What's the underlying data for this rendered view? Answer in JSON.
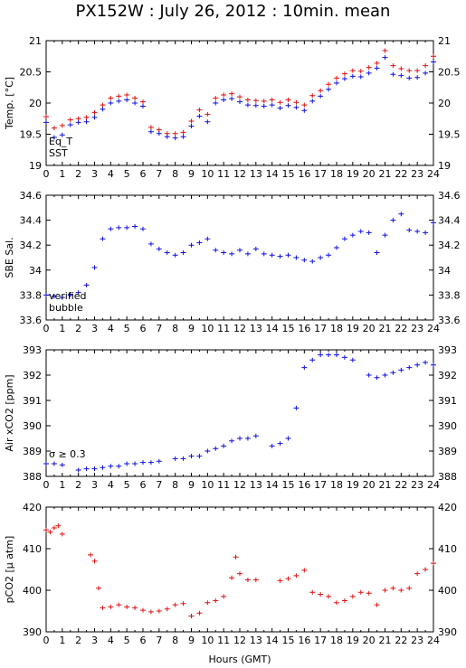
{
  "title": "PX152W : July 26, 2012 : 10min. mean",
  "xlabel": "Hours (GMT)",
  "colors": {
    "red": "#e01010",
    "blue": "#1010e0",
    "magenta": "#d010d0"
  },
  "chart_data": [
    {
      "type": "scatter",
      "ylabel": "Temp. [°C]",
      "xlim": [
        0,
        24
      ],
      "ylim": [
        19,
        21
      ],
      "yticks": [
        "19",
        "19.5",
        "20",
        "20.5",
        "21"
      ],
      "legend": [
        "Eq_T",
        "SST"
      ],
      "series": [
        {
          "name": "Eq_T",
          "color": "red",
          "x": [
            0,
            0.5,
            1,
            1.5,
            2,
            2.5,
            3,
            3.5,
            4,
            4.5,
            5,
            5.5,
            6,
            6.5,
            7,
            7.5,
            8,
            8.5,
            9,
            9.5,
            10,
            10.5,
            11,
            11.5,
            12,
            12.5,
            13,
            13.5,
            14,
            14.5,
            15,
            15.5,
            16,
            16.5,
            17,
            17.5,
            18,
            18.5,
            19,
            19.5,
            20,
            20.5,
            21,
            21.5,
            22,
            22.5,
            23,
            23.5,
            24
          ],
          "y": [
            19.78,
            19.6,
            19.64,
            19.73,
            19.75,
            19.77,
            19.85,
            19.97,
            20.08,
            20.11,
            20.13,
            20.08,
            20.02,
            19.61,
            19.57,
            19.51,
            19.51,
            19.53,
            19.71,
            19.89,
            19.82,
            20.08,
            20.13,
            20.15,
            20.1,
            20.05,
            20.04,
            20.03,
            20.05,
            20.01,
            20.05,
            20.01,
            19.97,
            20.12,
            20.2,
            20.3,
            20.4,
            20.47,
            20.52,
            20.51,
            20.57,
            20.64,
            20.84,
            20.6,
            20.55,
            20.52,
            20.52,
            20.6,
            20.75
          ]
        },
        {
          "name": "SST",
          "color": "blue",
          "x": [
            0,
            0.5,
            1,
            1.5,
            2,
            2.5,
            3,
            3.5,
            4,
            4.5,
            5,
            5.5,
            6,
            6.5,
            7,
            7.5,
            8,
            8.5,
            9,
            9.5,
            10,
            10.5,
            11,
            11.5,
            12,
            12.5,
            13,
            13.5,
            14,
            14.5,
            15,
            15.5,
            16,
            16.5,
            17,
            17.5,
            18,
            18.5,
            19,
            19.5,
            20,
            20.5,
            21,
            21.5,
            22,
            22.5,
            23,
            23.5,
            24
          ],
          "y": [
            19.69,
            19.45,
            19.49,
            19.65,
            19.69,
            19.7,
            19.77,
            19.9,
            20.0,
            20.03,
            20.05,
            20.0,
            19.95,
            19.54,
            19.51,
            19.46,
            19.44,
            19.46,
            19.63,
            19.79,
            19.7,
            20.0,
            20.05,
            20.07,
            20.02,
            19.97,
            19.96,
            19.95,
            19.97,
            19.92,
            19.96,
            19.93,
            19.88,
            20.03,
            20.11,
            20.22,
            20.32,
            20.39,
            20.43,
            20.42,
            20.48,
            20.56,
            20.73,
            20.46,
            20.44,
            20.4,
            20.41,
            20.48,
            20.66
          ]
        }
      ]
    },
    {
      "type": "scatter",
      "ylabel": "SBE Sal.",
      "xlim": [
        0,
        24
      ],
      "ylim": [
        33.6,
        34.6
      ],
      "yticks": [
        "33.6",
        "33.8",
        "34",
        "34.2",
        "34.4",
        "34.6"
      ],
      "legend": [
        "verified",
        "bubble"
      ],
      "series": [
        {
          "name": "verified",
          "color": "blue",
          "x": [
            0,
            0.5,
            1,
            1.5,
            2,
            2.5,
            3,
            3.5,
            4,
            4.5,
            5,
            5.5,
            6,
            6.5,
            7,
            7.5,
            8,
            8.5,
            9,
            9.5,
            10,
            10.5,
            11,
            11.5,
            12,
            12.5,
            13,
            13.5,
            14,
            14.5,
            15,
            15.5,
            16,
            16.5,
            17,
            17.5,
            18,
            18.5,
            19,
            19.5,
            20,
            20.5,
            21,
            21.5,
            22,
            22.5,
            23,
            23.5,
            24
          ],
          "y": [
            33.8,
            33.79,
            33.78,
            33.8,
            33.82,
            33.88,
            34.02,
            34.25,
            34.33,
            34.34,
            34.34,
            34.35,
            34.33,
            34.21,
            34.17,
            34.14,
            34.12,
            34.14,
            34.2,
            34.22,
            34.25,
            34.16,
            34.14,
            34.13,
            34.16,
            34.13,
            34.17,
            34.13,
            34.12,
            34.11,
            34.12,
            34.1,
            34.08,
            34.07,
            34.1,
            34.12,
            34.18,
            34.25,
            34.28,
            34.31,
            34.3,
            34.14,
            34.28,
            34.4,
            34.45,
            34.32,
            34.31,
            34.3,
            34.38
          ]
        }
      ]
    },
    {
      "type": "scatter",
      "ylabel": "Air xCO2 [ppm]",
      "xlim": [
        0,
        24
      ],
      "ylim": [
        388,
        393
      ],
      "yticks": [
        "388",
        "389",
        "390",
        "391",
        "392",
        "393"
      ],
      "annotation": "σ ≥ 0.3",
      "series": [
        {
          "name": "Air xCO2",
          "color": "blue",
          "x": [
            0,
            0.5,
            1,
            2,
            2.5,
            3,
            3.5,
            4,
            4.5,
            5,
            5.5,
            6,
            6.5,
            7,
            8,
            8.5,
            9,
            9.5,
            10,
            10.5,
            11,
            11.5,
            12,
            12.5,
            13,
            14,
            14.5,
            15,
            15.5,
            16,
            16.5,
            17,
            17.5,
            18,
            18.5,
            19,
            20,
            20.5,
            21,
            21.5,
            22,
            22.5,
            23,
            23.5,
            24
          ],
          "y": [
            388.5,
            388.5,
            388.45,
            388.25,
            388.3,
            388.3,
            388.35,
            388.4,
            388.4,
            388.5,
            388.5,
            388.55,
            388.55,
            388.6,
            388.7,
            388.7,
            388.8,
            388.8,
            389.0,
            389.1,
            389.2,
            389.4,
            389.5,
            389.5,
            389.6,
            389.2,
            389.3,
            389.5,
            390.7,
            392.3,
            392.6,
            392.8,
            392.8,
            392.8,
            392.7,
            392.6,
            392.0,
            391.9,
            392.0,
            392.1,
            392.2,
            392.3,
            392.4,
            392.5,
            392.4
          ]
        }
      ]
    },
    {
      "type": "scatter",
      "ylabel": "pCO2 [µ atm]",
      "xlim": [
        0,
        24
      ],
      "ylim": [
        390,
        420
      ],
      "yticks": [
        "390",
        "400",
        "410",
        "420"
      ],
      "series": [
        {
          "name": "pCO2",
          "color": "red",
          "x": [
            0,
            0.25,
            0.5,
            0.75,
            1,
            2.75,
            3,
            3.25,
            3.5,
            4,
            4.5,
            5,
            5.5,
            6,
            6.5,
            7,
            7.5,
            8,
            8.5,
            9,
            9.5,
            10,
            10.5,
            11,
            11.5,
            11.75,
            12,
            12.5,
            13,
            14.5,
            15,
            15.5,
            16,
            16.5,
            17,
            17.5,
            18,
            18.5,
            19,
            19.5,
            20,
            20.5,
            21,
            21.5,
            22,
            22.5,
            23,
            23.5,
            24
          ],
          "y": [
            414.5,
            414.0,
            415.0,
            415.5,
            413.5,
            408.5,
            407.0,
            400.5,
            395.8,
            396.0,
            396.5,
            396.0,
            395.8,
            395.2,
            394.8,
            395.0,
            395.5,
            396.5,
            396.8,
            393.8,
            394.5,
            397.0,
            397.5,
            398.5,
            403.0,
            408.0,
            404.0,
            402.5,
            402.5,
            402.3,
            402.8,
            403.5,
            404.8,
            399.5,
            399.0,
            398.5,
            397.0,
            397.5,
            398.5,
            399.5,
            399.3,
            396.5,
            400.0,
            400.5,
            400.0,
            400.5,
            404.0,
            405.0,
            406.5
          ]
        }
      ]
    }
  ]
}
